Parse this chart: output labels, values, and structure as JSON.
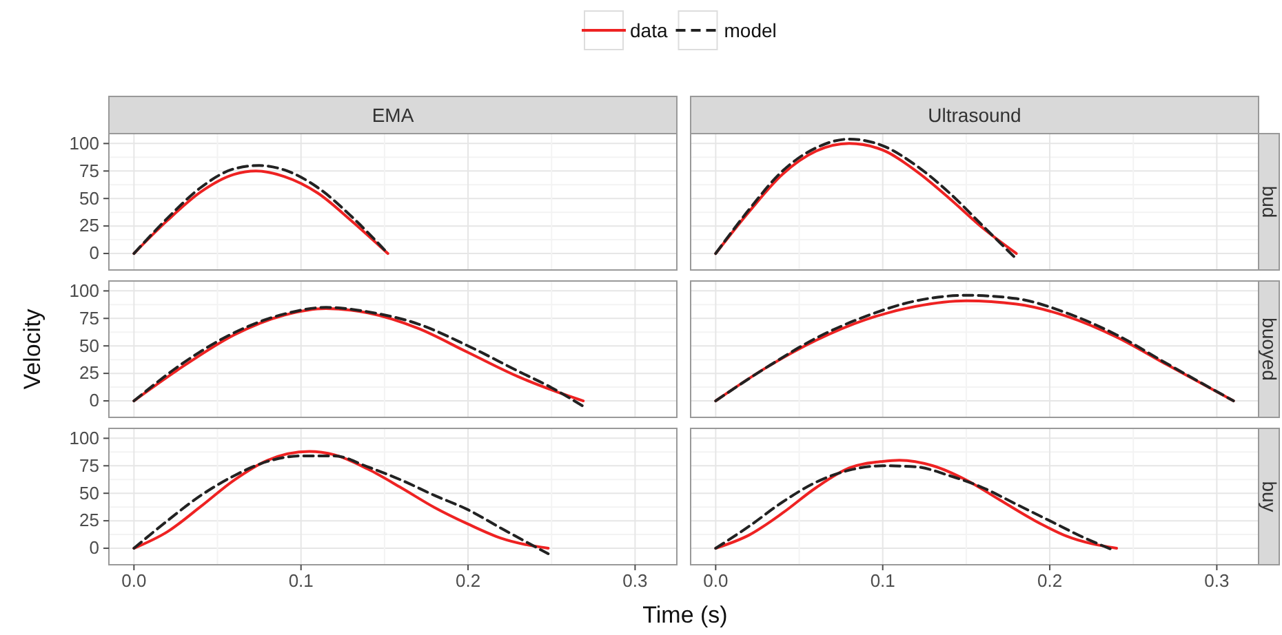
{
  "chart_data": [
    {
      "type": "line",
      "title": "EMA",
      "legend": "top",
      "grid": true,
      "tick_labels": "y",
      "xlim": [
        -0.015,
        0.325
      ],
      "ylim": [
        -15,
        109
      ],
      "xticks": [
        {
          "value": 0,
          "label": null
        },
        {
          "value": 0.1,
          "label": null
        },
        {
          "value": 0.2,
          "label": null
        },
        {
          "value": 0.3,
          "label": null
        }
      ],
      "yticks": [
        0,
        25,
        50,
        75,
        100
      ],
      "series": [
        {
          "name": "data",
          "color": "#ee2222",
          "line_style": "solid",
          "x": [
            0,
            0.02,
            0.04,
            0.06,
            0.073,
            0.09,
            0.11,
            0.13,
            0.152
          ],
          "values": [
            0,
            30,
            56,
            72,
            75,
            70,
            55,
            30,
            0
          ]
        },
        {
          "name": "model",
          "color": "#222222",
          "line_style": "dashed",
          "x": [
            0,
            0.02,
            0.04,
            0.06,
            0.075,
            0.09,
            0.11,
            0.13,
            0.152
          ],
          "values": [
            0,
            32,
            60,
            77,
            80,
            76,
            60,
            34,
            0
          ]
        }
      ]
    },
    {
      "type": "line",
      "title": "Ultrasound",
      "subtitle": "bud",
      "grid": true,
      "tick_labels": false,
      "xlim": [
        -0.015,
        0.325
      ],
      "ylim": [
        -15,
        109
      ],
      "xticks": [
        {
          "value": 0,
          "label": null
        },
        {
          "value": 0.1,
          "label": null
        },
        {
          "value": 0.2,
          "label": null
        },
        {
          "value": 0.3,
          "label": null
        }
      ],
      "yticks": [
        {
          "value": 0,
          "label": null
        },
        {
          "value": 25,
          "label": null
        },
        {
          "value": 50,
          "label": null
        },
        {
          "value": 75,
          "label": null
        },
        {
          "value": 100,
          "label": null
        }
      ],
      "series": [
        {
          "color": "#ee2222",
          "line_style": "solid",
          "x": [
            0,
            0.02,
            0.04,
            0.06,
            0.08,
            0.1,
            0.12,
            0.14,
            0.16,
            0.18
          ],
          "values": [
            0,
            38,
            72,
            93,
            100,
            94,
            75,
            50,
            23,
            0
          ]
        },
        {
          "color": "#222222",
          "line_style": "dashed",
          "x": [
            0,
            0.02,
            0.04,
            0.06,
            0.08,
            0.1,
            0.12,
            0.14,
            0.16,
            0.18
          ],
          "values": [
            0,
            40,
            75,
            96,
            104,
            98,
            80,
            55,
            25,
            -5
          ]
        }
      ]
    },
    {
      "type": "line",
      "ylabel": "Velocity",
      "grid": true,
      "tick_labels": "y",
      "xlim": [
        -0.015,
        0.325
      ],
      "ylim": [
        -15,
        109
      ],
      "xticks": [
        {
          "value": 0,
          "label": null
        },
        {
          "value": 0.1,
          "label": null
        },
        {
          "value": 0.2,
          "label": null
        },
        {
          "value": 0.3,
          "label": null
        }
      ],
      "yticks": [
        0,
        25,
        50,
        75,
        100
      ],
      "series": [
        {
          "color": "#ee2222",
          "line_style": "solid",
          "x": [
            0,
            0.03,
            0.06,
            0.09,
            0.115,
            0.14,
            0.17,
            0.2,
            0.23,
            0.25,
            0.269
          ],
          "values": [
            0,
            32,
            60,
            78,
            84,
            80,
            66,
            44,
            22,
            10,
            0
          ]
        },
        {
          "color": "#222222",
          "line_style": "dashed",
          "x": [
            0,
            0.03,
            0.06,
            0.09,
            0.115,
            0.14,
            0.17,
            0.2,
            0.23,
            0.25,
            0.269
          ],
          "values": [
            0,
            35,
            62,
            79,
            85,
            81,
            70,
            50,
            27,
            12,
            -5
          ]
        }
      ]
    },
    {
      "type": "line",
      "subtitle": "buoyed",
      "grid": true,
      "tick_labels": false,
      "xlim": [
        -0.015,
        0.325
      ],
      "ylim": [
        -15,
        109
      ],
      "xticks": [
        {
          "value": 0,
          "label": null
        },
        {
          "value": 0.1,
          "label": null
        },
        {
          "value": 0.2,
          "label": null
        },
        {
          "value": 0.3,
          "label": null
        }
      ],
      "yticks": [
        {
          "value": 0,
          "label": null
        },
        {
          "value": 25,
          "label": null
        },
        {
          "value": 50,
          "label": null
        },
        {
          "value": 75,
          "label": null
        },
        {
          "value": 100,
          "label": null
        }
      ],
      "series": [
        {
          "color": "#ee2222",
          "line_style": "solid",
          "x": [
            0,
            0.03,
            0.06,
            0.09,
            0.12,
            0.15,
            0.18,
            0.21,
            0.24,
            0.27,
            0.31
          ],
          "values": [
            0,
            30,
            55,
            74,
            86,
            91,
            88,
            77,
            58,
            33,
            0
          ]
        },
        {
          "color": "#222222",
          "line_style": "dashed",
          "x": [
            0,
            0.03,
            0.06,
            0.09,
            0.12,
            0.15,
            0.18,
            0.21,
            0.24,
            0.27,
            0.31
          ],
          "values": [
            0,
            30,
            57,
            77,
            91,
            96,
            93,
            80,
            60,
            34,
            0
          ]
        }
      ]
    },
    {
      "type": "line",
      "xlabel": "Time (s)",
      "grid": true,
      "xlim": [
        -0.015,
        0.325
      ],
      "ylim": [
        -15,
        109
      ],
      "xticks": [
        {
          "value": 0,
          "label": "0.0"
        },
        {
          "value": 0.1,
          "label": "0.1"
        },
        {
          "value": 0.2,
          "label": "0.2"
        },
        {
          "value": 0.3,
          "label": "0.3"
        }
      ],
      "yticks": [
        0,
        25,
        50,
        75,
        100
      ],
      "series": [
        {
          "color": "#ee2222",
          "line_style": "solid",
          "x": [
            0,
            0.02,
            0.04,
            0.06,
            0.08,
            0.105,
            0.12,
            0.14,
            0.16,
            0.18,
            0.2,
            0.22,
            0.248
          ],
          "values": [
            0,
            15,
            38,
            62,
            80,
            88,
            85,
            72,
            55,
            37,
            22,
            9,
            0
          ]
        },
        {
          "color": "#222222",
          "line_style": "dashed",
          "x": [
            0,
            0.02,
            0.04,
            0.06,
            0.08,
            0.1,
            0.12,
            0.14,
            0.16,
            0.18,
            0.2,
            0.22,
            0.248
          ],
          "values": [
            0,
            25,
            48,
            66,
            79,
            84,
            84,
            74,
            62,
            48,
            35,
            18,
            -5
          ]
        }
      ]
    },
    {
      "type": "line",
      "subtitle": "buy",
      "grid": true,
      "tick_labels": "x",
      "xlim": [
        -0.015,
        0.325
      ],
      "ylim": [
        -15,
        109
      ],
      "xticks": [
        {
          "value": 0,
          "label": "0.0"
        },
        {
          "value": 0.1,
          "label": "0.1"
        },
        {
          "value": 0.2,
          "label": "0.2"
        },
        {
          "value": 0.3,
          "label": "0.3"
        }
      ],
      "yticks": [
        {
          "value": 0,
          "label": null
        },
        {
          "value": 25,
          "label": null
        },
        {
          "value": 50,
          "label": null
        },
        {
          "value": 75,
          "label": null
        },
        {
          "value": 100,
          "label": null
        }
      ],
      "series": [
        {
          "color": "#ee2222",
          "line_style": "solid",
          "x": [
            0,
            0.02,
            0.04,
            0.06,
            0.08,
            0.1,
            0.11,
            0.13,
            0.15,
            0.17,
            0.19,
            0.21,
            0.24
          ],
          "values": [
            0,
            12,
            32,
            55,
            73,
            79,
            80,
            75,
            62,
            44,
            26,
            11,
            0
          ]
        },
        {
          "color": "#222222",
          "line_style": "dashed",
          "x": [
            0,
            0.02,
            0.04,
            0.06,
            0.08,
            0.1,
            0.12,
            0.14,
            0.16,
            0.18,
            0.2,
            0.22,
            0.237
          ],
          "values": [
            0,
            20,
            42,
            60,
            71,
            75,
            74,
            66,
            55,
            40,
            25,
            10,
            -1
          ]
        }
      ]
    }
  ]
}
